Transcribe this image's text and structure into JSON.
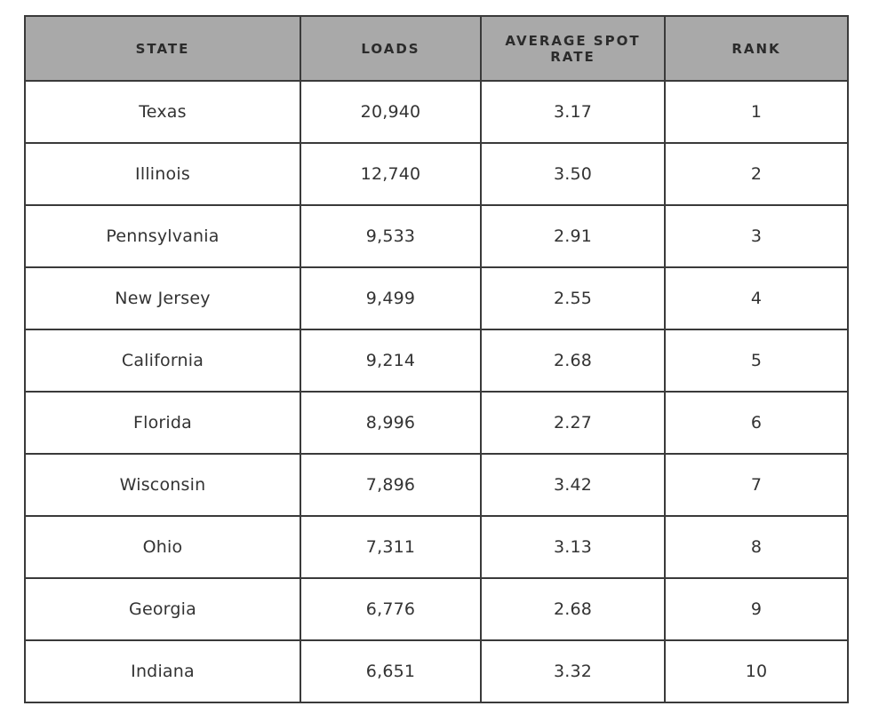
{
  "colors": {
    "page_bg": "#ffffff",
    "header_bg": "#a9a9a9",
    "header_text": "#2b2b2b",
    "cell_text": "#333333",
    "border": "#3a3a3a"
  },
  "table": {
    "columns": [
      "STATE",
      "LOADS",
      "AVERAGE SPOT RATE",
      "RANK"
    ],
    "rows": [
      [
        "Texas",
        "20,940",
        "3.17",
        "1"
      ],
      [
        "Illinois",
        "12,740",
        "3.50",
        "2"
      ],
      [
        "Pennsylvania",
        "9,533",
        "2.91",
        "3"
      ],
      [
        "New Jersey",
        "9,499",
        "2.55",
        "4"
      ],
      [
        "California",
        "9,214",
        "2.68",
        "5"
      ],
      [
        "Florida",
        "8,996",
        "2.27",
        "6"
      ],
      [
        "Wisconsin",
        "7,896",
        "3.42",
        "7"
      ],
      [
        "Ohio",
        "7,311",
        "3.13",
        "8"
      ],
      [
        "Georgia",
        "6,776",
        "2.68",
        "9"
      ],
      [
        "Indiana",
        "6,651",
        "3.32",
        "10"
      ]
    ]
  },
  "chart_data": {
    "type": "table",
    "title": "",
    "columns": [
      "STATE",
      "LOADS",
      "AVERAGE SPOT RATE",
      "RANK"
    ],
    "rows": [
      {
        "state": "Texas",
        "loads": 20940,
        "average_spot_rate": 3.17,
        "rank": 1
      },
      {
        "state": "Illinois",
        "loads": 12740,
        "average_spot_rate": 3.5,
        "rank": 2
      },
      {
        "state": "Pennsylvania",
        "loads": 9533,
        "average_spot_rate": 2.91,
        "rank": 3
      },
      {
        "state": "New Jersey",
        "loads": 9499,
        "average_spot_rate": 2.55,
        "rank": 4
      },
      {
        "state": "California",
        "loads": 9214,
        "average_spot_rate": 2.68,
        "rank": 5
      },
      {
        "state": "Florida",
        "loads": 8996,
        "average_spot_rate": 2.27,
        "rank": 6
      },
      {
        "state": "Wisconsin",
        "loads": 7896,
        "average_spot_rate": 3.42,
        "rank": 7
      },
      {
        "state": "Ohio",
        "loads": 7311,
        "average_spot_rate": 3.13,
        "rank": 8
      },
      {
        "state": "Georgia",
        "loads": 6776,
        "average_spot_rate": 2.68,
        "rank": 9
      },
      {
        "state": "Indiana",
        "loads": 6651,
        "average_spot_rate": 3.32,
        "rank": 10
      }
    ]
  }
}
